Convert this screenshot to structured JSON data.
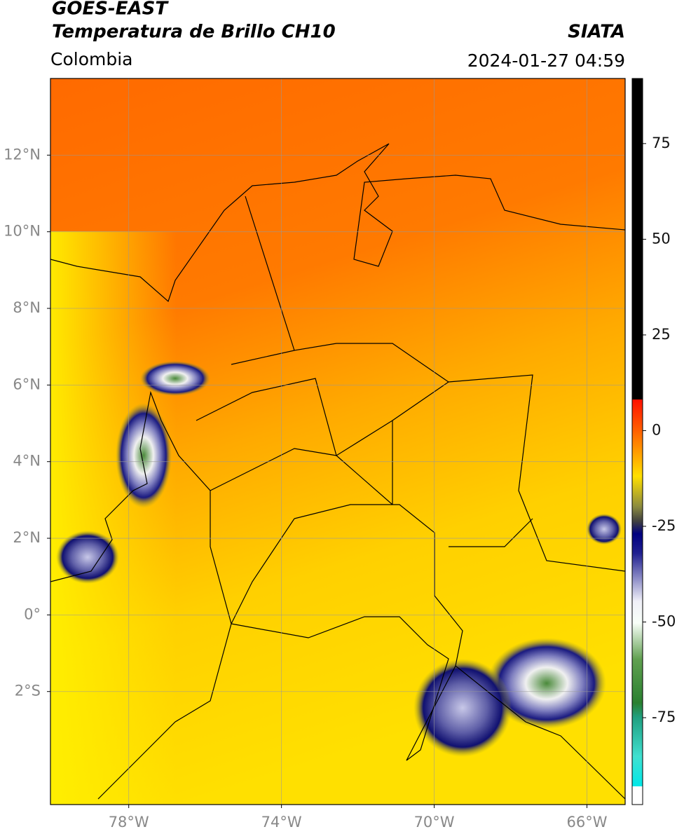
{
  "header": {
    "title_line1": "GOES-EAST",
    "title_line2": "Temperatura de Brillo CH10",
    "region": "Colombia",
    "source": "SIATA",
    "datetime": "2024-01-27 04:59"
  },
  "map": {
    "xlim": [
      -80.05,
      -65.0
    ],
    "ylim": [
      -4.95,
      14.0
    ],
    "grid": true,
    "xticks": [
      {
        "value": -78,
        "label": "78°W"
      },
      {
        "value": -74,
        "label": "74°W"
      },
      {
        "value": -70,
        "label": "70°W"
      },
      {
        "value": -66,
        "label": "66°W"
      }
    ],
    "yticks": [
      {
        "value": 12,
        "label": "12°N"
      },
      {
        "value": 10,
        "label": "10°N"
      },
      {
        "value": 8,
        "label": "8°N"
      },
      {
        "value": 6,
        "label": "6°N"
      },
      {
        "value": 4,
        "label": "4°N"
      },
      {
        "value": 2,
        "label": "2°N"
      },
      {
        "value": 0,
        "label": "0°"
      },
      {
        "value": -2,
        "label": "2°S"
      }
    ]
  },
  "colorbar": {
    "lim": [
      -97.7,
      92
    ],
    "ticks": [
      75,
      50,
      25,
      0,
      -25,
      -50,
      -75
    ]
  }
}
